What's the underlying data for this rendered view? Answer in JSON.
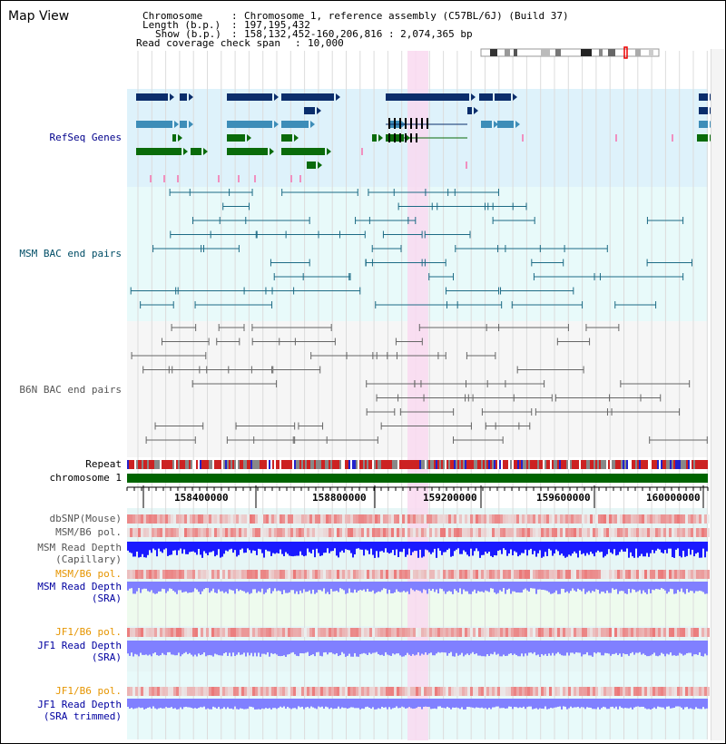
{
  "title": "Map View",
  "header": {
    "chromosome_key": "Chromosome",
    "chromosome_value": "Chromosome 1, reference assembly (C57BL/6J) (Build 37)",
    "length_key": "Length (b.p.)",
    "length_value": "197,195,432",
    "show_key": "Show (b.p.)",
    "show_value": "158,132,452-160,206,816 : 2,074,365 bp",
    "span_key": "Read coverage check span",
    "span_value": "10,000"
  },
  "tracks": {
    "refseq": "RefSeq Genes",
    "msm_bac": "MSM BAC end pairs",
    "b6n_bac": "B6N BAC end pairs",
    "repeat": "Repeat",
    "chromosome": "chromosome 1",
    "dbsnp": "dbSNP(Mouse)",
    "msm_b6_pol": "MSM/B6 pol.",
    "msm_depth_cap_1": "MSM Read Depth",
    "msm_depth_cap_2": "(Capillary)",
    "msm_b6_pol2": "MSM/B6 pol.",
    "msm_depth_sra_1": "MSM Read Depth",
    "msm_depth_sra_2": "(SRA)",
    "jf1_pol": "JF1/B6 pol.",
    "jf1_depth_1": "JF1 Read Depth",
    "jf1_depth_2": "(SRA)",
    "jf1_pol2": "JF1/B6 pol.",
    "jf1_trim_1": "JF1 Read Depth",
    "jf1_trim_2": "(SRA trimmed)"
  },
  "axis": {
    "ticks": [
      "158400000",
      "158800000",
      "159200000",
      "159600000",
      "160000000"
    ]
  },
  "colors": {
    "refseq_bg": "#def2fb",
    "msm_bg": "#e8fafa",
    "b6n_bg": "#f6f6f6",
    "highlight": "#f9d9f0",
    "gene_dark": "#0a2d6b",
    "gene_mid": "#3d8db8",
    "gene_green": "#0a6b0a",
    "bac_msm": "#1d6b85",
    "bac_b6n": "#666666",
    "depth_blue": "#1a1aff",
    "depth_light": "#8080ff",
    "chromosome_green": "#006400"
  }
}
